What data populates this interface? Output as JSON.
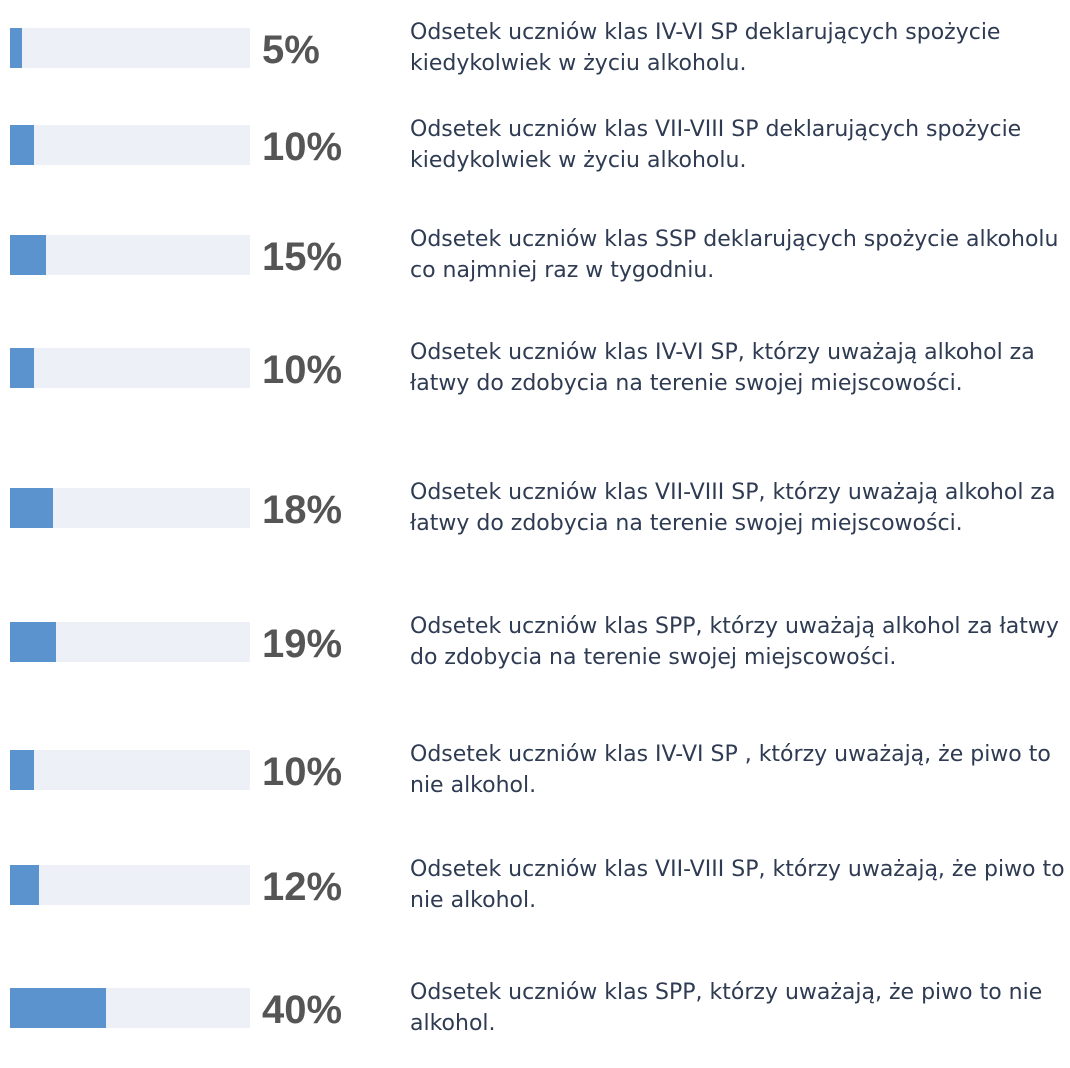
{
  "chart_data": {
    "type": "bar",
    "orientation": "horizontal",
    "categories": [
      "Odsetek uczniów klas IV-VI SP deklarujących spożycie kiedykolwiek w życiu alkoholu.",
      "Odsetek uczniów klas VII-VIII SP deklarujących spożycie kiedykolwiek w życiu alkoholu.",
      "Odsetek uczniów klas SSP deklarujących spożycie alkoholu co najmniej raz w tygodniu.",
      "Odsetek uczniów klas IV-VI SP, którzy uważają alkohol za łatwy do zdobycia na terenie swojej miejscowości.",
      "Odsetek uczniów klas VII-VIII SP, którzy uważają alkohol za łatwy do zdobycia na terenie swojej miejscowości.",
      "Odsetek uczniów klas SPP, którzy uważają alkohol za łatwy do zdobycia na terenie swojej miejscowości.",
      "Odsetek uczniów klas IV-VI SP , którzy uważają, że piwo to nie alkohol.",
      "Odsetek uczniów klas VII-VIII SP, którzy uważają, że piwo to nie alkohol.",
      "Odsetek uczniów klas SPP, którzy uważają, że piwo to nie alkohol."
    ],
    "values": [
      5,
      10,
      15,
      10,
      18,
      19,
      10,
      12,
      40
    ],
    "value_labels": [
      "5%",
      "10%",
      "15%",
      "10%",
      "18%",
      "19%",
      "10%",
      "12%",
      "40%"
    ],
    "xlim": [
      0,
      100
    ],
    "color": "#5b93cf",
    "track_color": "#eef0f8"
  }
}
